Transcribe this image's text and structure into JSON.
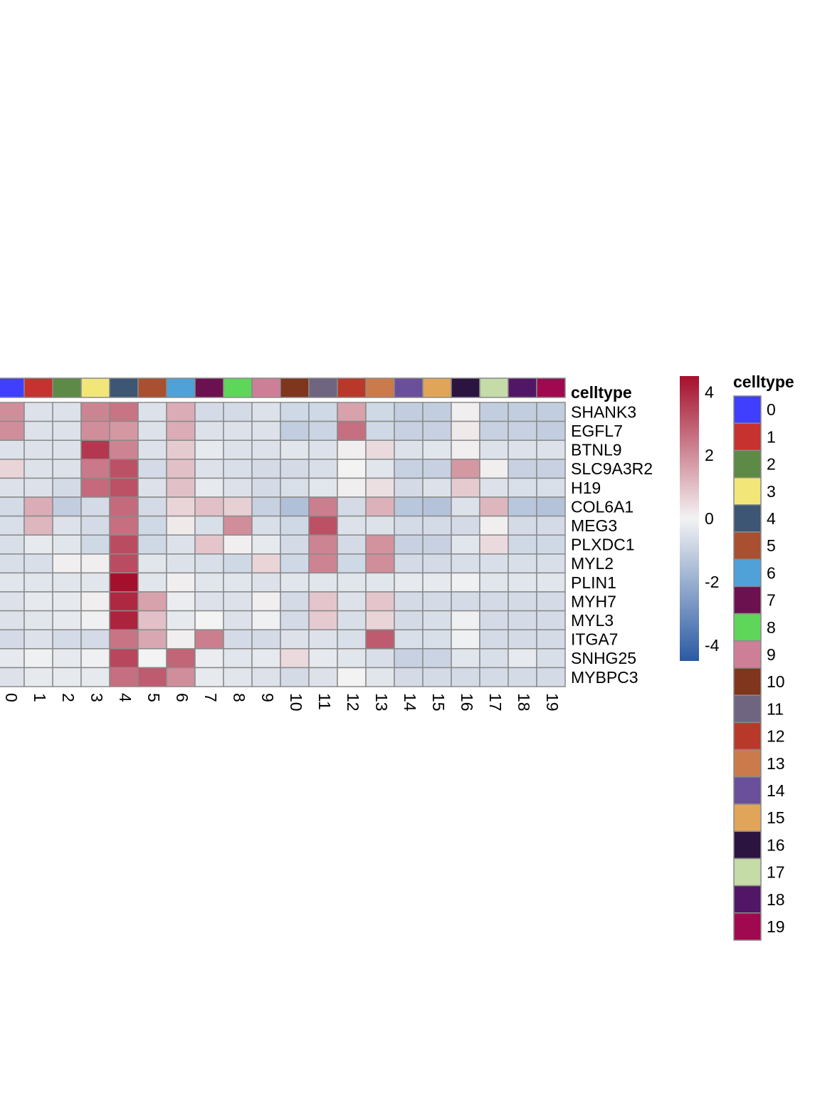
{
  "chart_data": {
    "type": "heatmap",
    "rows": [
      "SHANK3",
      "EGFL7",
      "BTNL9",
      "SLC9A3R2",
      "H19",
      "COL6A1",
      "MEG3",
      "PLXDC1",
      "MYL2",
      "PLIN1",
      "MYH7",
      "MYL3",
      "ITGA7",
      "SNHG25",
      "MYBPC3"
    ],
    "columns": [
      "0",
      "1",
      "2",
      "3",
      "4",
      "5",
      "6",
      "7",
      "8",
      "9",
      "10",
      "11",
      "12",
      "13",
      "14",
      "15",
      "16",
      "17",
      "18",
      "19"
    ],
    "values": [
      [
        2.0,
        -0.5,
        -0.5,
        2.2,
        2.5,
        -0.5,
        1.4,
        -0.7,
        -0.7,
        -0.5,
        -0.8,
        -0.8,
        1.6,
        -0.8,
        -1.1,
        -1.1,
        0.1,
        -1.1,
        -1.1,
        -1.1
      ],
      [
        2.0,
        -0.5,
        -0.5,
        2.0,
        1.8,
        -0.5,
        1.4,
        -0.5,
        -0.5,
        -0.5,
        -1.1,
        -0.9,
        2.6,
        -0.8,
        -1.0,
        -1.0,
        0.2,
        -1.0,
        -1.0,
        -1.1
      ],
      [
        -0.5,
        -0.5,
        -0.5,
        3.7,
        2.2,
        -0.5,
        0.8,
        -0.3,
        -0.5,
        -0.5,
        -0.4,
        -0.5,
        0.1,
        0.5,
        -0.5,
        -0.4,
        0.1,
        -0.5,
        -0.5,
        -0.5
      ],
      [
        0.6,
        -0.5,
        -0.5,
        2.4,
        3.2,
        -0.7,
        1.0,
        -0.5,
        -0.6,
        -0.7,
        -0.7,
        -0.6,
        0.0,
        -0.4,
        -1.0,
        -1.0,
        1.8,
        0.1,
        -1.0,
        -1.0
      ],
      [
        -0.5,
        -0.5,
        -0.7,
        2.7,
        3.2,
        -0.5,
        1.0,
        -0.3,
        -0.5,
        -0.7,
        -0.6,
        -0.4,
        0.1,
        0.4,
        -0.7,
        -0.5,
        0.8,
        -0.5,
        -0.6,
        -0.6
      ],
      [
        -0.7,
        1.4,
        -1.1,
        -0.7,
        2.7,
        -0.7,
        0.6,
        1.0,
        0.7,
        -1.0,
        -1.5,
        2.3,
        -0.7,
        1.3,
        -1.3,
        -1.4,
        -0.5,
        1.2,
        -1.3,
        -1.4
      ],
      [
        -0.6,
        1.2,
        -0.5,
        -0.7,
        2.6,
        -0.8,
        0.2,
        -0.6,
        2.0,
        -0.6,
        -0.8,
        3.2,
        -0.5,
        -0.5,
        -0.7,
        -0.7,
        -0.7,
        0.1,
        -0.7,
        -0.7
      ],
      [
        -0.6,
        -0.3,
        -0.4,
        -0.8,
        3.3,
        -0.8,
        -0.5,
        0.9,
        0.1,
        -0.3,
        -0.7,
        2.2,
        -0.7,
        1.9,
        -1.0,
        -1.0,
        -0.4,
        0.5,
        -0.8,
        -0.8
      ],
      [
        -0.6,
        -0.6,
        0.1,
        0.1,
        3.3,
        -0.4,
        -0.5,
        -0.6,
        -0.8,
        0.6,
        -0.8,
        2.2,
        -0.8,
        2.0,
        -0.7,
        -0.7,
        -0.6,
        -0.6,
        -0.6,
        -0.6
      ],
      [
        -0.4,
        -0.4,
        -0.4,
        -0.4,
        4.5,
        -0.4,
        0.1,
        -0.4,
        -0.4,
        -0.5,
        -0.4,
        -0.4,
        -0.4,
        -0.4,
        -0.3,
        -0.3,
        -0.1,
        -0.4,
        -0.4,
        -0.4
      ],
      [
        -0.5,
        -0.3,
        -0.3,
        0.1,
        4.0,
        1.6,
        -0.2,
        -0.5,
        -0.5,
        0.1,
        -0.7,
        0.9,
        -0.5,
        0.9,
        -0.7,
        -0.7,
        -0.7,
        -0.7,
        -0.7,
        -0.7
      ],
      [
        -0.5,
        -0.4,
        -0.3,
        -0.1,
        4.1,
        1.0,
        -0.3,
        0.0,
        -0.5,
        -0.1,
        -0.7,
        0.8,
        -0.6,
        0.6,
        -0.7,
        -0.6,
        -0.1,
        -0.7,
        -0.7,
        -0.7
      ],
      [
        -0.7,
        -0.5,
        -0.7,
        -0.7,
        2.5,
        1.5,
        0.1,
        2.3,
        -0.7,
        -0.7,
        -0.5,
        -0.5,
        -0.6,
        3.0,
        -0.6,
        -0.6,
        -0.1,
        -0.7,
        -0.7,
        -0.7
      ],
      [
        -0.3,
        -0.1,
        -0.3,
        -0.1,
        3.4,
        0.0,
        2.8,
        -0.2,
        -0.4,
        -0.3,
        0.5,
        -0.3,
        -0.4,
        -0.6,
        -1.0,
        -0.9,
        -0.4,
        -0.6,
        -0.3,
        -0.6
      ],
      [
        -0.5,
        -0.3,
        -0.3,
        -0.3,
        2.6,
        3.0,
        2.0,
        -0.3,
        -0.4,
        -0.5,
        -0.7,
        -0.5,
        0.0,
        -0.4,
        -0.7,
        -0.7,
        -0.7,
        -0.7,
        -0.7,
        -0.7
      ]
    ],
    "annotation": {
      "title": "celltype",
      "colors": [
        "#3f3ffd",
        "#c7312f",
        "#5e8a47",
        "#f2e679",
        "#3c5674",
        "#a8502f",
        "#4fa1d8",
        "#6b1150",
        "#5ed65a",
        "#cd7f98",
        "#7f361c",
        "#6f6580",
        "#b8392a",
        "#cb7b4b",
        "#6a4f9b",
        "#e0a558",
        "#2b1440",
        "#c5dba8",
        "#521667",
        "#a0094f"
      ]
    },
    "legend": {
      "title": "celltype",
      "placement": "right",
      "labels": [
        "0",
        "1",
        "2",
        "3",
        "4",
        "5",
        "6",
        "7",
        "8",
        "9",
        "10",
        "11",
        "12",
        "13",
        "14",
        "15",
        "16",
        "17",
        "18",
        "19"
      ]
    },
    "colorbar": {
      "ticks": [
        "4",
        "2",
        "0",
        "-2",
        "-4"
      ],
      "range": [
        -4.5,
        4.5
      ],
      "colors": [
        "#2b5aa3",
        "#f3f3f3",
        "#a50f2c"
      ]
    }
  }
}
